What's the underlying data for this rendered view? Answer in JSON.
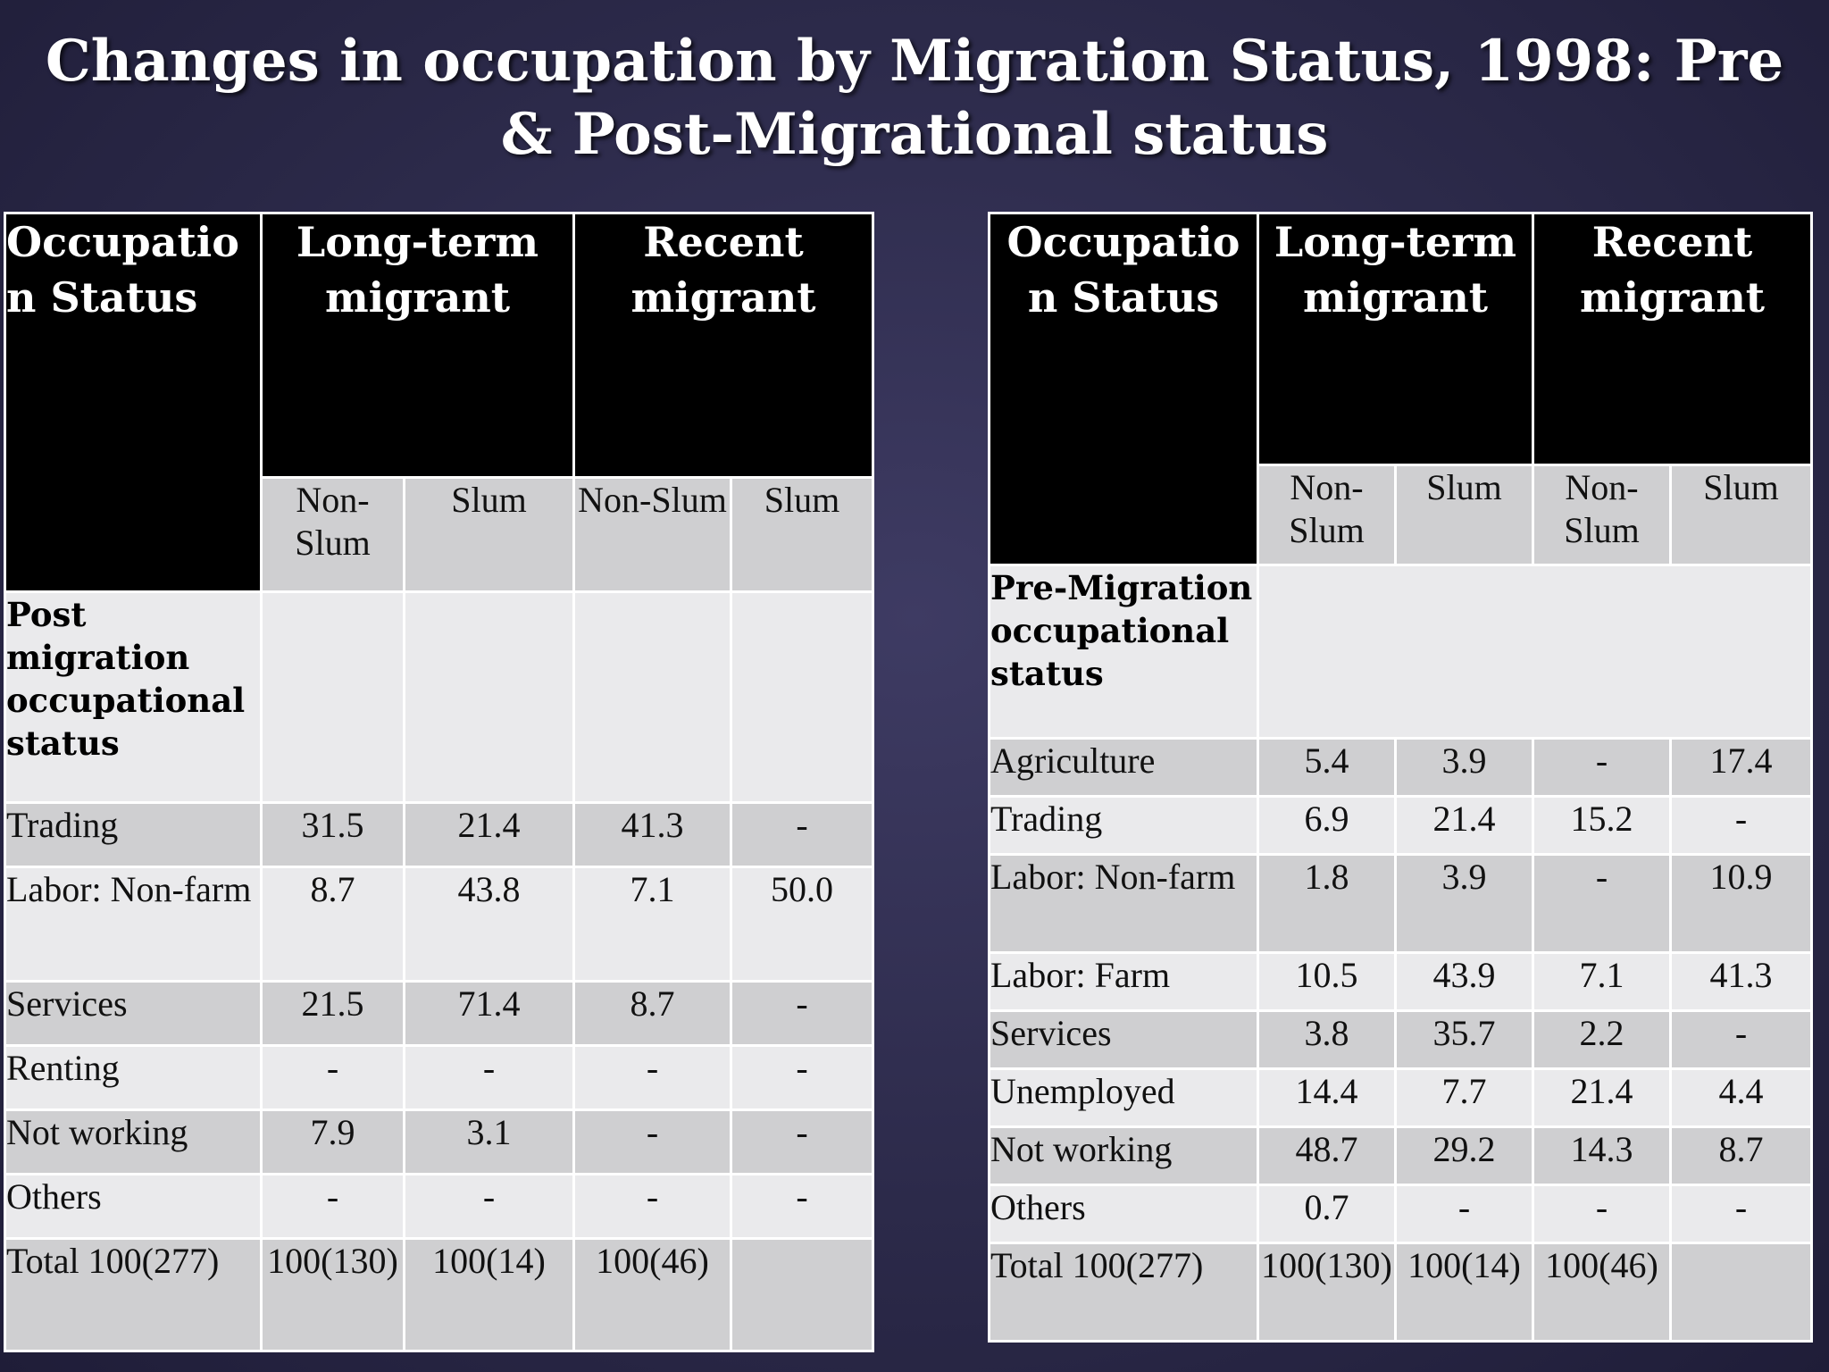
{
  "slide": {
    "title": "Changes in occupation by Migration Status, 1998: Pre & Post-Migrational status"
  },
  "left_table": {
    "header": {
      "occupation": "Occupatio n Status",
      "long_term": "Long-term migrant",
      "recent": "Recent migrant",
      "sub": [
        "Non-Slum",
        "Slum",
        "Non-Slum",
        "Slum"
      ]
    },
    "section_label": "Post migration occupational status",
    "rows": [
      {
        "label": "Trading",
        "values": [
          "31.5",
          "21.4",
          "41.3",
          "-"
        ]
      },
      {
        "label": "Labor: Non-farm",
        "values": [
          "8.7",
          "43.8",
          "7.1",
          "50.0"
        ]
      },
      {
        "label": "Services",
        "values": [
          "21.5",
          "71.4",
          "8.7",
          "-"
        ]
      },
      {
        "label": "Renting",
        "values": [
          "-",
          "-",
          "-",
          "-"
        ]
      },
      {
        "label": "Not working",
        "values": [
          "7.9",
          "3.1",
          "-",
          "-"
        ]
      },
      {
        "label": "Others",
        "values": [
          "-",
          "-",
          "-",
          "-"
        ]
      },
      {
        "label": "Total 100(277)",
        "values": [
          "100(130)",
          "100(14)",
          "100(46)",
          ""
        ]
      }
    ]
  },
  "right_table": {
    "header": {
      "occupation": "Occupatio n Status",
      "long_term": "Long-term migrant",
      "recent": "Recent migrant",
      "sub": [
        "Non-Slum",
        "Slum",
        "Non-Slum",
        "Slum"
      ]
    },
    "section_label": "Pre-Migration occupational status",
    "rows": [
      {
        "label": "Agriculture",
        "values": [
          "5.4",
          "3.9",
          "-",
          "17.4"
        ]
      },
      {
        "label": "Trading",
        "values": [
          "6.9",
          "21.4",
          "15.2",
          "-"
        ]
      },
      {
        "label": "Labor: Non-farm",
        "values": [
          "1.8",
          "3.9",
          "-",
          "10.9"
        ]
      },
      {
        "label": "Labor: Farm",
        "values": [
          "10.5",
          "43.9",
          "7.1",
          "41.3"
        ]
      },
      {
        "label": "Services",
        "values": [
          "3.8",
          "35.7",
          "2.2",
          "-"
        ]
      },
      {
        "label": "Unemployed",
        "values": [
          "14.4",
          "7.7",
          "21.4",
          "4.4"
        ]
      },
      {
        "label": "Not working",
        "values": [
          "48.7",
          "29.2",
          "14.3",
          "8.7"
        ]
      },
      {
        "label": "Others",
        "values": [
          "0.7",
          "-",
          "-",
          "-"
        ]
      },
      {
        "label": "Total 100(277)",
        "values": [
          "100(130)",
          "100(14)",
          "100(46)",
          ""
        ]
      }
    ]
  }
}
